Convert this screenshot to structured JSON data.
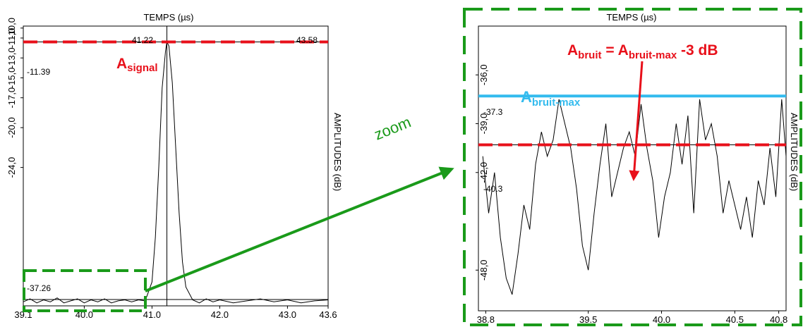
{
  "colors": {
    "signal_line": "#e8101a",
    "noise_max_line": "#33bbee",
    "threshold_line": "#e8101a",
    "zoom_frame": "#1a9a1a",
    "trace": "#000000",
    "annotation_red": "#e8101a",
    "annotation_blue": "#33bbee",
    "annotation_green": "#1a9a1a"
  },
  "zoom_label": "zoom",
  "chart_data": [
    {
      "type": "line",
      "title": "TEMPS (µs)",
      "ylabel": "AMPLITUDES (dB)",
      "xlim": [
        39.1,
        43.6
      ],
      "ylim": [
        -37.9,
        -9.8
      ],
      "x_ticks": [
        "39.1",
        "40.0",
        "41.0",
        "42.0",
        "43.0",
        "43.6"
      ],
      "y_ticks": [
        "-10,0",
        "-11,0",
        "-13,0",
        "-15,0",
        "-17,0",
        "-20,0",
        "-24,0"
      ],
      "cursor_labels": {
        "x_cursor": "41.22",
        "x_right": "43.58",
        "y_signal": "-11.39",
        "y_noise": "-37.26"
      },
      "cursor_x": 41.22,
      "signal_level": -11.39,
      "noise_level": -37.26,
      "annotation": {
        "main": "A",
        "sub": "signal"
      },
      "series": [
        {
          "x": [
            39.1,
            39.2,
            39.3,
            39.4,
            39.5,
            39.6,
            39.7,
            39.8,
            39.9,
            40.0,
            40.1,
            40.2,
            40.3,
            40.4,
            40.5,
            40.6,
            40.7,
            40.8,
            40.9,
            41.0,
            41.05,
            41.1,
            41.15,
            41.2,
            41.22,
            41.25,
            41.3,
            41.35,
            41.4,
            41.45,
            41.5,
            41.6,
            41.7,
            41.8,
            41.9,
            42.0,
            42.2,
            42.4,
            42.6,
            42.8,
            43.0,
            43.2,
            43.4,
            43.6
          ],
          "y": [
            -37.5,
            -37.2,
            -37.6,
            -37.3,
            -37.5,
            -37.1,
            -37.6,
            -37.4,
            -37.2,
            -37.6,
            -37.3,
            -37.5,
            -37.2,
            -37.6,
            -37.4,
            -37.3,
            -37.5,
            -37.3,
            -37.4,
            -35.5,
            -31.0,
            -24.0,
            -16.0,
            -12.3,
            -11.39,
            -11.8,
            -15.5,
            -22.0,
            -28.5,
            -33.5,
            -36.0,
            -37.3,
            -37.6,
            -37.2,
            -37.5,
            -37.3,
            -37.6,
            -37.4,
            -37.2,
            -37.5,
            -37.3,
            -37.6,
            -37.4,
            -37.3
          ]
        }
      ]
    },
    {
      "type": "line",
      "title": "TEMPS (µs)",
      "ylabel": "AMPLITUDES (dB)",
      "xlim": [
        38.75,
        40.85
      ],
      "ylim": [
        -50.5,
        -33.0
      ],
      "x_ticks": [
        "38.8",
        "39.5",
        "40.0",
        "40.5",
        "40.8"
      ],
      "y_ticks": [
        "-36,0",
        "-39,0",
        "-42,0",
        "-48,0"
      ],
      "cursor_labels": {
        "y_max": "-37.3",
        "y_threshold": "-40.3"
      },
      "noise_max_level": -37.3,
      "threshold_level": -40.3,
      "annotation_noise_max": {
        "main": "A",
        "sub": "bruit-max"
      },
      "annotation_threshold": {
        "main": "A",
        "sub": "bruit",
        "eq": " = ",
        "main2": "A",
        "sub2": "bruit-max",
        "tail": " -3 dB"
      },
      "series": [
        {
          "x": [
            38.78,
            38.82,
            38.86,
            38.9,
            38.94,
            38.98,
            39.02,
            39.06,
            39.1,
            39.14,
            39.18,
            39.22,
            39.26,
            39.3,
            39.34,
            39.38,
            39.42,
            39.46,
            39.5,
            39.54,
            39.58,
            39.62,
            39.66,
            39.7,
            39.74,
            39.78,
            39.82,
            39.86,
            39.9,
            39.94,
            39.98,
            40.02,
            40.06,
            40.1,
            40.14,
            40.18,
            40.22,
            40.26,
            40.3,
            40.34,
            40.38,
            40.42,
            40.46,
            40.5,
            40.54,
            40.58,
            40.62,
            40.66,
            40.7,
            40.74,
            40.78,
            40.82,
            40.85
          ],
          "y": [
            -41.0,
            -44.5,
            -42.0,
            -46.0,
            -48.5,
            -49.5,
            -47.0,
            -44.0,
            -45.5,
            -41.5,
            -39.5,
            -41.0,
            -40.0,
            -37.5,
            -39.0,
            -40.5,
            -43.0,
            -46.5,
            -48.0,
            -44.5,
            -41.5,
            -39.0,
            -43.5,
            -42.0,
            -40.5,
            -39.5,
            -41.0,
            -37.8,
            -40.5,
            -42.5,
            -46.0,
            -43.5,
            -42.0,
            -39.0,
            -41.5,
            -38.5,
            -44.5,
            -37.5,
            -40.0,
            -39.0,
            -41.0,
            -44.5,
            -42.5,
            -44.0,
            -45.5,
            -43.5,
            -46.0,
            -42.5,
            -44.0,
            -40.5,
            -43.5,
            -37.5,
            -41.0
          ]
        }
      ]
    }
  ]
}
